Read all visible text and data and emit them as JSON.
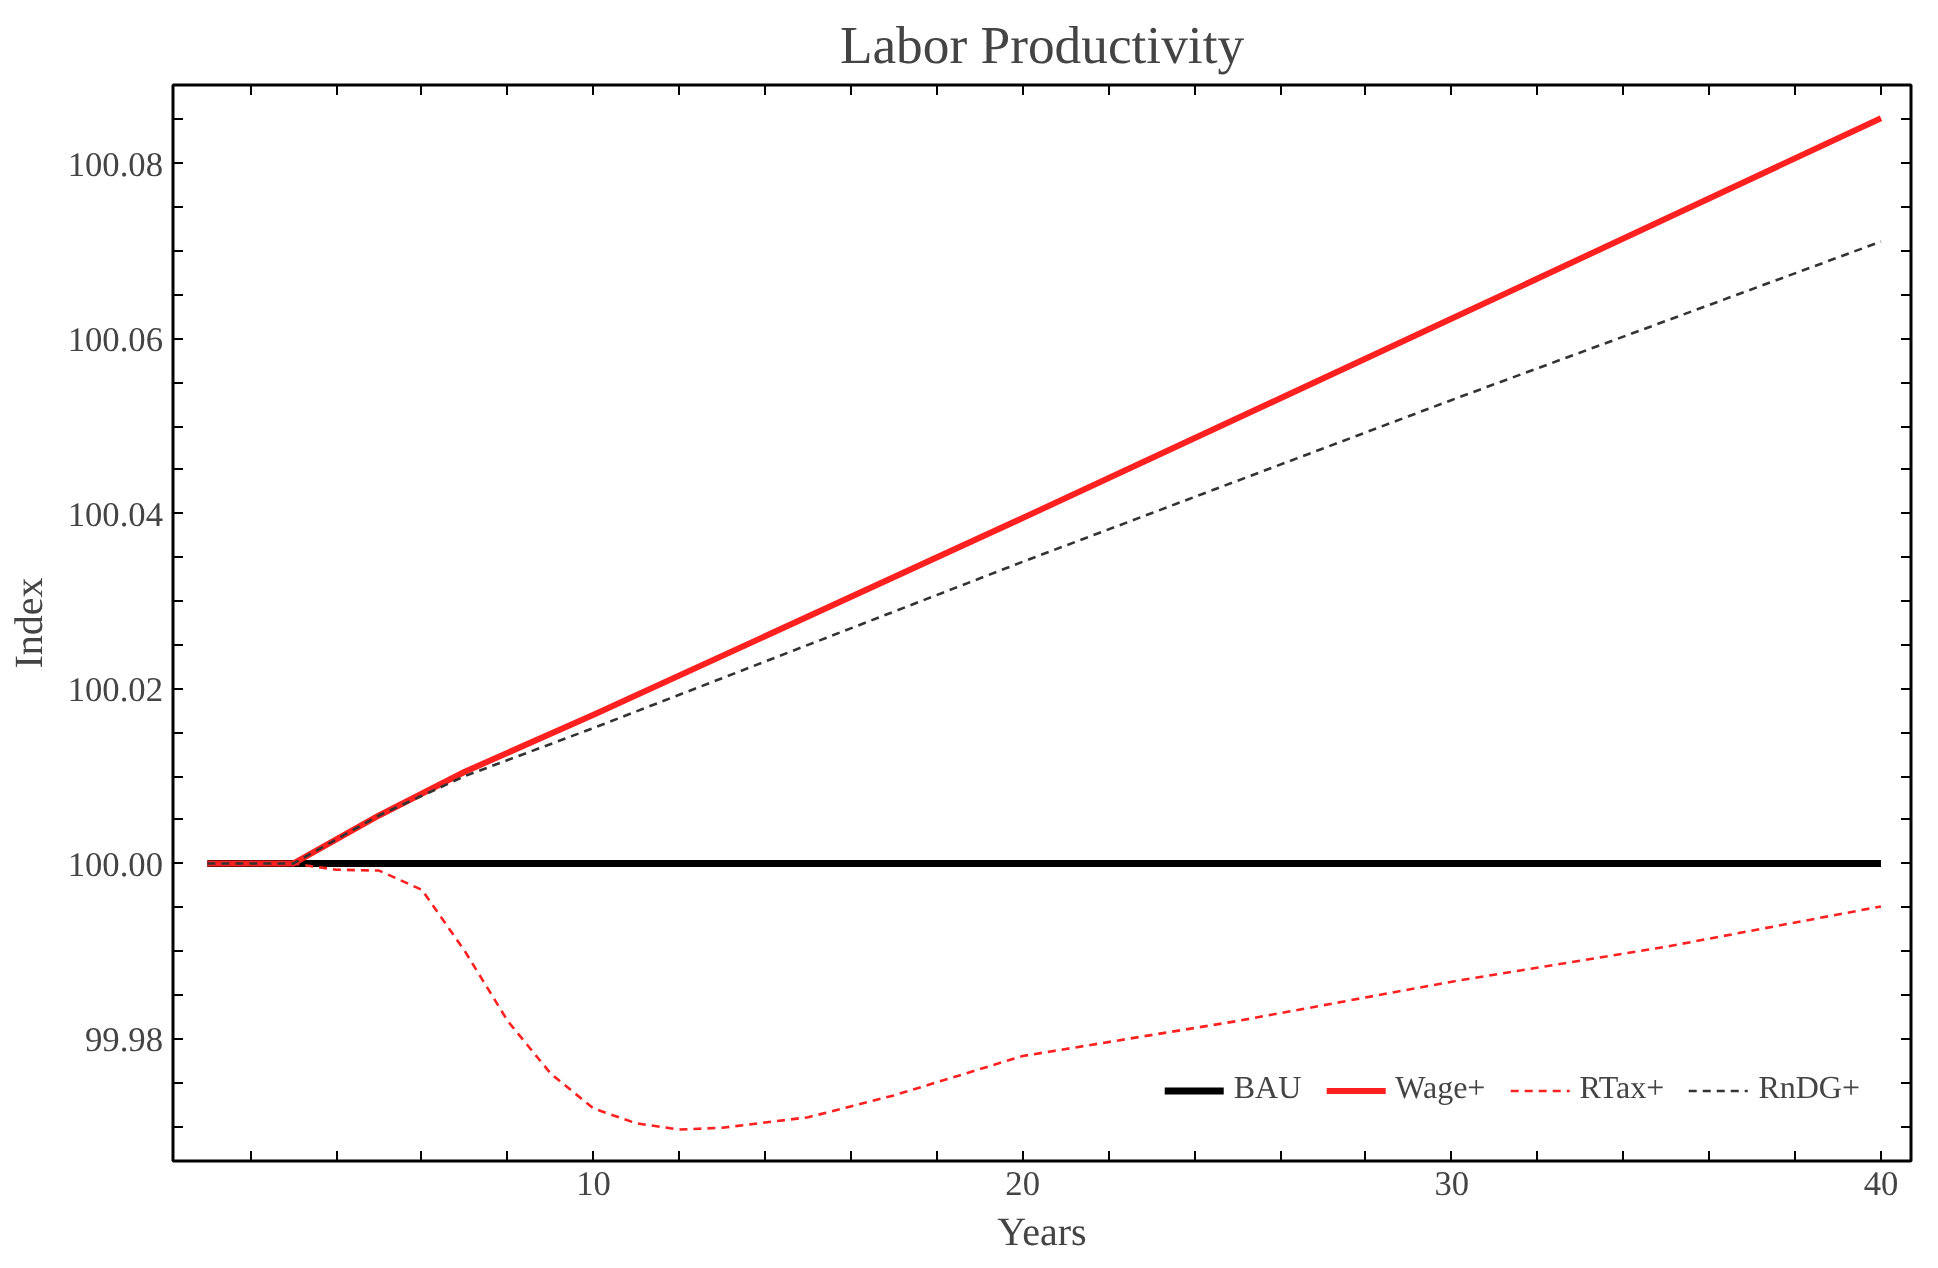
{
  "chart_data": {
    "type": "line",
    "title": "Labor Productivity",
    "xlabel": "Years",
    "ylabel": "Index",
    "xlim": [
      0.2,
      40.7
    ],
    "ylim": [
      99.966,
      100.089
    ],
    "xticks": [
      {
        "value": 2,
        "label": null
      },
      {
        "value": 4,
        "label": null
      },
      {
        "value": 6,
        "label": null
      },
      {
        "value": 8,
        "label": null
      },
      10,
      {
        "value": 12,
        "label": null
      },
      {
        "value": 14,
        "label": null
      },
      {
        "value": 16,
        "label": null
      },
      {
        "value": 18,
        "label": null
      },
      20,
      {
        "value": 22,
        "label": null
      },
      {
        "value": 24,
        "label": null
      },
      {
        "value": 26,
        "label": null
      },
      {
        "value": 28,
        "label": null
      },
      30,
      {
        "value": 32,
        "label": null
      },
      {
        "value": 34,
        "label": null
      },
      {
        "value": 36,
        "label": null
      },
      {
        "value": 38,
        "label": null
      },
      40
    ],
    "yticks": [
      {
        "value": 99.97,
        "label": null
      },
      {
        "value": 99.975,
        "label": null
      },
      {
        "value": 99.98,
        "label": "99.98"
      },
      {
        "value": 99.985,
        "label": null
      },
      {
        "value": 99.99,
        "label": null
      },
      {
        "value": 99.995,
        "label": null
      },
      {
        "value": 100.0,
        "label": "100.00"
      },
      {
        "value": 100.005,
        "label": null
      },
      {
        "value": 100.01,
        "label": null
      },
      {
        "value": 100.015,
        "label": null
      },
      {
        "value": 100.02,
        "label": "100.02"
      },
      {
        "value": 100.025,
        "label": null
      },
      {
        "value": 100.03,
        "label": null
      },
      {
        "value": 100.035,
        "label": null
      },
      {
        "value": 100.04,
        "label": "100.04"
      },
      {
        "value": 100.045,
        "label": null
      },
      {
        "value": 100.05,
        "label": null
      },
      {
        "value": 100.055,
        "label": null
      },
      {
        "value": 100.06,
        "label": "100.06"
      },
      {
        "value": 100.065,
        "label": null
      },
      {
        "value": 100.07,
        "label": null
      },
      {
        "value": 100.075,
        "label": null
      },
      {
        "value": 100.08,
        "label": "100.08"
      },
      {
        "value": 100.085,
        "label": null
      }
    ],
    "grid": false,
    "legend": "bottom right",
    "series": [
      {
        "name": "BAU",
        "color": "#000000",
        "line_style": "solid",
        "x": [
          1,
          40
        ],
        "values": [
          100.0,
          100.0
        ]
      },
      {
        "name": "Wage+",
        "color": "#ff2020",
        "line_style": "solid",
        "x": [
          1,
          3,
          5,
          7,
          10,
          20,
          30,
          40
        ],
        "values": [
          100.0,
          100.0,
          100.0055,
          100.0105,
          100.017,
          100.0395,
          100.0623,
          100.0852
        ]
      },
      {
        "name": "RTax+",
        "color": "#ff2020",
        "line_style": "dashed",
        "x": [
          1,
          3,
          4,
          5,
          6,
          7,
          8,
          9,
          10,
          11,
          12,
          13,
          15,
          17,
          20,
          25,
          30,
          35,
          40
        ],
        "values": [
          100.0,
          100.0,
          99.9993,
          99.9992,
          99.997,
          99.99,
          99.982,
          99.976,
          99.972,
          99.9703,
          99.9696,
          99.9698,
          99.971,
          99.9735,
          99.978,
          99.982,
          99.9865,
          99.9905,
          99.9951
        ]
      },
      {
        "name": "RnDG+",
        "color": "#333333",
        "line_style": "dashed",
        "x": [
          1,
          3,
          5,
          7,
          10,
          20,
          30,
          40
        ],
        "values": [
          100.0,
          100.0,
          100.0055,
          100.01,
          100.0155,
          100.0345,
          100.053,
          100.0711
        ]
      }
    ]
  }
}
